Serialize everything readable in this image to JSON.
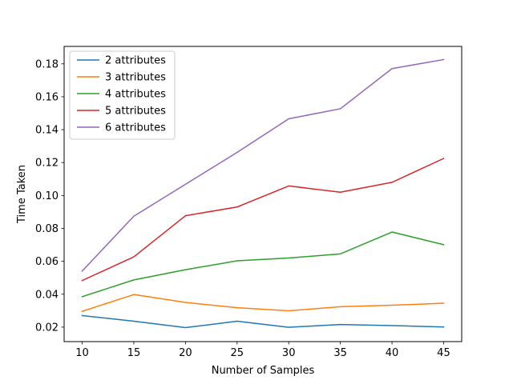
{
  "chart_data": {
    "type": "line",
    "title": "",
    "xlabel": "Number of Samples",
    "ylabel": "Time Taken",
    "x": [
      10,
      15,
      20,
      25,
      30,
      35,
      40,
      45
    ],
    "xticks": [
      10,
      15,
      20,
      25,
      30,
      35,
      40,
      45
    ],
    "xlim": [
      8.25,
      46.75
    ],
    "yticks": [
      0.02,
      0.04,
      0.06,
      0.08,
      0.1,
      0.12,
      0.14,
      0.16,
      0.18
    ],
    "ytick_labels": [
      "0.02",
      "0.04",
      "0.06",
      "0.08",
      "0.10",
      "0.12",
      "0.14",
      "0.16",
      "0.18"
    ],
    "ylim": [
      0.0112,
      0.1906
    ],
    "grid": false,
    "legend_position": "top-left",
    "series": [
      {
        "name": "2 attributes",
        "color": "#1f77b4",
        "values": [
          0.027,
          0.0236,
          0.0197,
          0.0236,
          0.0199,
          0.0216,
          0.0209,
          0.0201
        ]
      },
      {
        "name": "3 attributes",
        "color": "#ff7f0e",
        "values": [
          0.0296,
          0.0398,
          0.035,
          0.0318,
          0.0299,
          0.0324,
          0.0333,
          0.0345
        ]
      },
      {
        "name": "4 attributes",
        "color": "#2ca02c",
        "values": [
          0.0385,
          0.0487,
          0.0549,
          0.0603,
          0.062,
          0.0645,
          0.0778,
          0.0701
        ]
      },
      {
        "name": "5 attributes",
        "color": "#d62728",
        "values": [
          0.0483,
          0.0627,
          0.0877,
          0.093,
          0.1058,
          0.102,
          0.108,
          0.1225
        ]
      },
      {
        "name": "6 attributes",
        "color": "#9467bd",
        "values": [
          0.0541,
          0.0874,
          0.1068,
          0.1262,
          0.1466,
          0.1527,
          0.1771,
          0.1826
        ]
      }
    ]
  }
}
